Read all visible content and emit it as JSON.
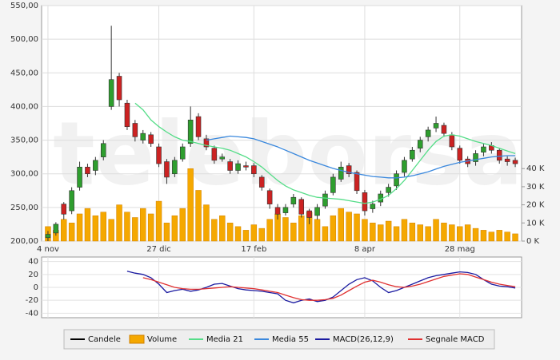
{
  "chart_data": {
    "type": "candlestick",
    "watermark": "teleborsa",
    "categories": [
      "4 nov",
      null,
      null,
      null,
      null,
      null,
      null,
      null,
      null,
      null,
      null,
      null,
      null,
      null,
      "27 dic",
      null,
      null,
      null,
      null,
      null,
      null,
      null,
      null,
      null,
      null,
      null,
      "17 feb",
      null,
      null,
      null,
      null,
      null,
      null,
      null,
      null,
      null,
      null,
      null,
      null,
      null,
      "8 apr",
      null,
      null,
      null,
      null,
      null,
      null,
      null,
      null,
      null,
      null,
      null,
      "28 mag",
      null,
      null,
      null,
      null,
      null,
      null,
      null
    ],
    "ylim": [
      200,
      550
    ],
    "yticks": [
      {
        "value": 200,
        "label": "200,00"
      },
      {
        "value": 250,
        "label": "250,00"
      },
      {
        "value": 300,
        "label": "300,00"
      },
      {
        "value": 350,
        "label": "350,00"
      },
      {
        "value": 400,
        "label": "400,00"
      },
      {
        "value": 450,
        "label": "450,00"
      },
      {
        "value": 500,
        "label": "500,00"
      },
      {
        "value": 550,
        "label": "550,00"
      }
    ],
    "y2lim": [
      0,
      130000
    ],
    "y2ticks": [
      {
        "value": 0,
        "label": "0 K"
      },
      {
        "value": 10000,
        "label": "10 K"
      },
      {
        "value": 20000,
        "label": "20 K"
      },
      {
        "value": 30000,
        "label": "30 K"
      },
      {
        "value": 40000,
        "label": "40 K"
      }
    ],
    "grid": true,
    "up_color": "#2e9e2e",
    "down_color": "#cc2222",
    "candles": {
      "name": "Candele",
      "color": "#000000",
      "open": [
        205,
        212,
        255,
        245,
        280,
        310,
        305,
        325,
        400,
        445,
        405,
        375,
        350,
        358,
        340,
        318,
        300,
        322,
        345,
        385,
        352,
        338,
        322,
        318,
        305,
        312,
        312,
        295,
        275,
        250,
        242,
        255,
        262,
        245,
        238,
        252,
        272,
        292,
        312,
        302,
        272,
        248,
        258,
        272,
        282,
        302,
        322,
        338,
        355,
        368,
        372,
        358,
        338,
        322,
        318,
        332,
        342,
        335,
        322,
        320
      ],
      "high": [
        215,
        228,
        258,
        280,
        318,
        315,
        325,
        350,
        520,
        450,
        410,
        380,
        365,
        362,
        345,
        322,
        325,
        345,
        400,
        390,
        358,
        342,
        330,
        322,
        320,
        318,
        316,
        298,
        278,
        255,
        255,
        270,
        265,
        248,
        255,
        275,
        300,
        318,
        316,
        305,
        276,
        260,
        275,
        285,
        305,
        325,
        340,
        355,
        370,
        385,
        376,
        362,
        342,
        326,
        335,
        345,
        347,
        338,
        326,
        324
      ],
      "low": [
        200,
        208,
        232,
        240,
        275,
        295,
        298,
        320,
        395,
        400,
        365,
        348,
        345,
        340,
        310,
        285,
        295,
        318,
        340,
        350,
        335,
        315,
        318,
        300,
        300,
        305,
        295,
        275,
        248,
        232,
        238,
        250,
        235,
        225,
        232,
        248,
        268,
        288,
        295,
        270,
        238,
        242,
        252,
        266,
        276,
        296,
        318,
        332,
        348,
        362,
        355,
        335,
        315,
        310,
        312,
        326,
        330,
        315,
        312,
        310
      ],
      "close": [
        210,
        225,
        240,
        275,
        310,
        300,
        320,
        345,
        440,
        410,
        370,
        355,
        360,
        345,
        315,
        295,
        320,
        340,
        380,
        355,
        340,
        320,
        325,
        305,
        315,
        310,
        300,
        280,
        255,
        240,
        250,
        265,
        240,
        235,
        250,
        270,
        295,
        310,
        300,
        275,
        245,
        255,
        270,
        280,
        300,
        320,
        335,
        350,
        365,
        375,
        360,
        340,
        320,
        315,
        330,
        340,
        335,
        320,
        318,
        315
      ]
    },
    "series": [
      {
        "name": "Volume",
        "color": "#f5a800",
        "axis": "y2",
        "values": [
          8000,
          6000,
          12000,
          10000,
          15000,
          18000,
          14000,
          16000,
          12000,
          20000,
          16000,
          13000,
          18000,
          15000,
          22000,
          10000,
          14000,
          18000,
          40000,
          28000,
          20000,
          12000,
          14000,
          10000,
          8000,
          6000,
          9000,
          7000,
          12000,
          15000,
          13000,
          10000,
          14000,
          16000,
          12000,
          8000,
          14000,
          18000,
          16000,
          15000,
          12000,
          10000,
          9000,
          11000,
          8000,
          12000,
          10000,
          9000,
          8000,
          12000,
          10000,
          9000,
          8000,
          9000,
          7000,
          6000,
          5000,
          6000,
          5000,
          4000
        ]
      },
      {
        "name": "Media 21",
        "color": "#55dd88",
        "values": [
          null,
          null,
          null,
          null,
          null,
          null,
          null,
          null,
          null,
          null,
          null,
          405,
          395,
          380,
          370,
          362,
          355,
          350,
          348,
          345,
          342,
          340,
          338,
          335,
          330,
          325,
          318,
          310,
          300,
          290,
          282,
          276,
          272,
          268,
          265,
          264,
          263,
          262,
          260,
          258,
          256,
          258,
          262,
          268,
          278,
          290,
          305,
          320,
          335,
          348,
          356,
          358,
          356,
          352,
          348,
          345,
          342,
          338,
          334,
          330
        ]
      },
      {
        "name": "Media 55",
        "color": "#3a88dd",
        "values": [
          null,
          null,
          null,
          null,
          null,
          null,
          null,
          null,
          null,
          null,
          null,
          null,
          null,
          null,
          null,
          null,
          null,
          null,
          null,
          null,
          350,
          352,
          354,
          356,
          355,
          354,
          352,
          348,
          344,
          340,
          335,
          330,
          325,
          320,
          316,
          312,
          308,
          305,
          302,
          300,
          298,
          296,
          295,
          294,
          294,
          295,
          297,
          300,
          303,
          307,
          311,
          314,
          317,
          319,
          321,
          323,
          325,
          326,
          327,
          327
        ]
      },
      {
        "name": "MACD(26,12,9)",
        "color": "#1a1aa0",
        "axis": "macd",
        "values": [
          null,
          null,
          null,
          null,
          null,
          null,
          null,
          null,
          null,
          null,
          25,
          22,
          20,
          15,
          5,
          -8,
          -5,
          -3,
          -6,
          -4,
          0,
          5,
          6,
          2,
          -2,
          -4,
          -5,
          -6,
          -8,
          -10,
          -20,
          -24,
          -20,
          -18,
          -22,
          -20,
          -15,
          -5,
          5,
          12,
          15,
          10,
          0,
          -8,
          -5,
          0,
          5,
          10,
          15,
          18,
          20,
          22,
          24,
          23,
          20,
          12,
          5,
          2,
          1,
          -1
        ]
      },
      {
        "name": "Segnale MACD",
        "color": "#e03030",
        "axis": "macd",
        "values": [
          null,
          null,
          null,
          null,
          null,
          null,
          null,
          null,
          null,
          null,
          null,
          null,
          15,
          12,
          8,
          4,
          0,
          -2,
          -3,
          -3,
          -2,
          -1,
          0,
          1,
          0,
          -1,
          -2,
          -4,
          -6,
          -8,
          -12,
          -16,
          -19,
          -20,
          -20,
          -19,
          -17,
          -12,
          -5,
          2,
          8,
          11,
          8,
          4,
          1,
          0,
          2,
          5,
          9,
          13,
          17,
          19,
          21,
          20,
          16,
          12,
          8,
          5,
          3,
          1
        ]
      }
    ],
    "macd_ylim": [
      -47,
      47
    ],
    "macd_yticks": [
      40,
      20,
      0,
      -20,
      -40
    ]
  }
}
